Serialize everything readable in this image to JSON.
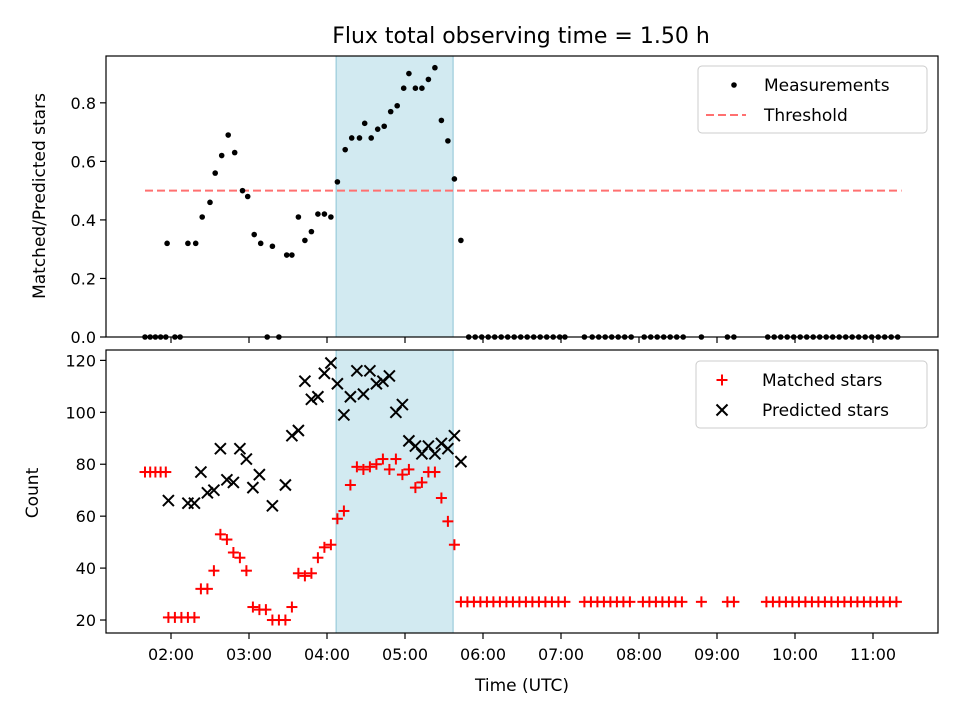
{
  "title": "Flux total observing time = 1.50 h",
  "colors": {
    "measurements": "#000000",
    "threshold": "#ff7070",
    "matched": "#ff0000",
    "predicted": "#000000",
    "highlight": "#add8e6"
  },
  "chart_data": [
    {
      "type": "scatter",
      "ylabel": "Matched/Predicted stars",
      "ylim": [
        0,
        0.96
      ],
      "yticks": [
        "0.0",
        "0.2",
        "0.4",
        "0.6",
        "0.8"
      ],
      "xlim": [
        "01:10",
        "11:50"
      ],
      "highlight_span": [
        "04:07",
        "05:37"
      ],
      "legend": {
        "position": "upper right",
        "entries": [
          "Measurements",
          "Threshold"
        ]
      },
      "threshold": {
        "value": 0.5,
        "x_range": [
          "01:40",
          "11:22"
        ],
        "style": "dashed"
      },
      "series": [
        {
          "name": "Measurements",
          "marker": "dot",
          "points": [
            [
              "01:40",
              0
            ],
            [
              "01:44",
              0
            ],
            [
              "01:48",
              0
            ],
            [
              "01:52",
              0
            ],
            [
              "01:56",
              0
            ],
            [
              "01:57",
              0.32
            ],
            [
              "02:03",
              0
            ],
            [
              "02:07",
              0
            ],
            [
              "02:13",
              0.32
            ],
            [
              "02:19",
              0.32
            ],
            [
              "02:24",
              0.41
            ],
            [
              "02:30",
              0.46
            ],
            [
              "02:34",
              0.56
            ],
            [
              "02:39",
              0.62
            ],
            [
              "02:44",
              0.69
            ],
            [
              "02:49",
              0.63
            ],
            [
              "02:55",
              0.5
            ],
            [
              "02:59",
              0.48
            ],
            [
              "03:04",
              0.35
            ],
            [
              "03:09",
              0.32
            ],
            [
              "03:14",
              0
            ],
            [
              "03:18",
              0.31
            ],
            [
              "03:23",
              0
            ],
            [
              "03:29",
              0.28
            ],
            [
              "03:33",
              0.28
            ],
            [
              "03:38",
              0.41
            ],
            [
              "03:43",
              0.33
            ],
            [
              "03:48",
              0.36
            ],
            [
              "03:53",
              0.42
            ],
            [
              "03:58",
              0.42
            ],
            [
              "04:03",
              0.41
            ],
            [
              "04:08",
              0.53
            ],
            [
              "04:14",
              0.64
            ],
            [
              "04:19",
              0.68
            ],
            [
              "04:25",
              0.68
            ],
            [
              "04:29",
              0.73
            ],
            [
              "04:34",
              0.68
            ],
            [
              "04:39",
              0.71
            ],
            [
              "04:44",
              0.72
            ],
            [
              "04:49",
              0.77
            ],
            [
              "04:54",
              0.79
            ],
            [
              "04:59",
              0.85
            ],
            [
              "05:03",
              0.9
            ],
            [
              "05:08",
              0.85
            ],
            [
              "05:13",
              0.85
            ],
            [
              "05:18",
              0.88
            ],
            [
              "05:23",
              0.92
            ],
            [
              "05:28",
              0.74
            ],
            [
              "05:33",
              0.67
            ],
            [
              "05:38",
              0.54
            ],
            [
              "05:43",
              0.33
            ],
            [
              "05:49",
              0
            ],
            [
              "05:54",
              0
            ],
            [
              "05:59",
              0
            ],
            [
              "06:04",
              0
            ],
            [
              "06:09",
              0
            ],
            [
              "06:14",
              0
            ],
            [
              "06:19",
              0
            ],
            [
              "06:24",
              0
            ],
            [
              "06:29",
              0
            ],
            [
              "06:34",
              0
            ],
            [
              "06:39",
              0
            ],
            [
              "06:44",
              0
            ],
            [
              "06:49",
              0
            ],
            [
              "06:54",
              0
            ],
            [
              "06:59",
              0
            ],
            [
              "07:03",
              0
            ],
            [
              "07:18",
              0
            ],
            [
              "07:24",
              0
            ],
            [
              "07:29",
              0
            ],
            [
              "07:34",
              0
            ],
            [
              "07:39",
              0
            ],
            [
              "07:44",
              0
            ],
            [
              "07:49",
              0
            ],
            [
              "07:54",
              0
            ],
            [
              "08:04",
              0
            ],
            [
              "08:09",
              0
            ],
            [
              "08:14",
              0
            ],
            [
              "08:19",
              0
            ],
            [
              "08:24",
              0
            ],
            [
              "08:29",
              0
            ],
            [
              "08:34",
              0
            ],
            [
              "08:48",
              0
            ],
            [
              "09:08",
              0
            ],
            [
              "09:13",
              0
            ],
            [
              "09:39",
              0
            ],
            [
              "09:44",
              0
            ],
            [
              "09:49",
              0
            ],
            [
              "09:54",
              0
            ],
            [
              "09:59",
              0
            ],
            [
              "10:04",
              0
            ],
            [
              "10:09",
              0
            ],
            [
              "10:14",
              0
            ],
            [
              "10:19",
              0
            ],
            [
              "10:24",
              0
            ],
            [
              "10:29",
              0
            ],
            [
              "10:34",
              0
            ],
            [
              "10:39",
              0
            ],
            [
              "10:44",
              0
            ],
            [
              "10:49",
              0
            ],
            [
              "10:54",
              0
            ],
            [
              "10:59",
              0
            ],
            [
              "11:04",
              0
            ],
            [
              "11:09",
              0
            ],
            [
              "11:14",
              0
            ],
            [
              "11:19",
              0
            ]
          ]
        }
      ]
    },
    {
      "type": "scatter",
      "ylabel": "Count",
      "xlabel": "Time (UTC)",
      "ylim": [
        15,
        124
      ],
      "yticks": [
        "20",
        "40",
        "60",
        "80",
        "100",
        "120"
      ],
      "xlim": [
        "01:10",
        "11:50"
      ],
      "xticks": [
        "02:00",
        "03:00",
        "04:00",
        "05:00",
        "06:00",
        "07:00",
        "08:00",
        "09:00",
        "10:00",
        "11:00"
      ],
      "highlight_span": [
        "04:07",
        "05:37"
      ],
      "legend": {
        "position": "upper right",
        "entries": [
          "Matched stars",
          "Predicted stars"
        ]
      },
      "series": [
        {
          "name": "Matched stars",
          "marker": "plus",
          "points": [
            [
              "01:40",
              77
            ],
            [
              "01:44",
              77
            ],
            [
              "01:48",
              77
            ],
            [
              "01:52",
              77
            ],
            [
              "01:56",
              77
            ],
            [
              "01:58",
              21
            ],
            [
              "02:03",
              21
            ],
            [
              "02:08",
              21
            ],
            [
              "02:13",
              21
            ],
            [
              "02:18",
              21
            ],
            [
              "02:23",
              32
            ],
            [
              "02:28",
              32
            ],
            [
              "02:33",
              39
            ],
            [
              "02:38",
              53
            ],
            [
              "02:43",
              51
            ],
            [
              "02:48",
              46
            ],
            [
              "02:53",
              44
            ],
            [
              "02:58",
              39
            ],
            [
              "03:03",
              25
            ],
            [
              "03:08",
              24
            ],
            [
              "03:13",
              24
            ],
            [
              "03:18",
              20
            ],
            [
              "03:23",
              20
            ],
            [
              "03:28",
              20
            ],
            [
              "03:33",
              25
            ],
            [
              "03:38",
              38
            ],
            [
              "03:43",
              37
            ],
            [
              "03:48",
              38
            ],
            [
              "03:53",
              44
            ],
            [
              "03:58",
              48
            ],
            [
              "04:03",
              49
            ],
            [
              "04:08",
              59
            ],
            [
              "04:13",
              62
            ],
            [
              "04:18",
              72
            ],
            [
              "04:23",
              79
            ],
            [
              "04:28",
              78
            ],
            [
              "04:33",
              79
            ],
            [
              "04:38",
              80
            ],
            [
              "04:43",
              82
            ],
            [
              "04:48",
              78
            ],
            [
              "04:53",
              82
            ],
            [
              "04:58",
              76
            ],
            [
              "05:03",
              78
            ],
            [
              "05:08",
              71
            ],
            [
              "05:13",
              73
            ],
            [
              "05:18",
              77
            ],
            [
              "05:23",
              77
            ],
            [
              "05:28",
              67
            ],
            [
              "05:33",
              58
            ],
            [
              "05:38",
              49
            ],
            [
              "05:43",
              27
            ],
            [
              "05:48",
              27
            ],
            [
              "05:53",
              27
            ],
            [
              "05:58",
              27
            ],
            [
              "06:03",
              27
            ],
            [
              "06:08",
              27
            ],
            [
              "06:13",
              27
            ],
            [
              "06:18",
              27
            ],
            [
              "06:23",
              27
            ],
            [
              "06:28",
              27
            ],
            [
              "06:33",
              27
            ],
            [
              "06:38",
              27
            ],
            [
              "06:43",
              27
            ],
            [
              "06:48",
              27
            ],
            [
              "06:53",
              27
            ],
            [
              "06:58",
              27
            ],
            [
              "07:03",
              27
            ],
            [
              "07:18",
              27
            ],
            [
              "07:23",
              27
            ],
            [
              "07:28",
              27
            ],
            [
              "07:33",
              27
            ],
            [
              "07:38",
              27
            ],
            [
              "07:43",
              27
            ],
            [
              "07:48",
              27
            ],
            [
              "07:53",
              27
            ],
            [
              "08:03",
              27
            ],
            [
              "08:08",
              27
            ],
            [
              "08:13",
              27
            ],
            [
              "08:18",
              27
            ],
            [
              "08:23",
              27
            ],
            [
              "08:28",
              27
            ],
            [
              "08:33",
              27
            ],
            [
              "08:48",
              27
            ],
            [
              "09:08",
              27
            ],
            [
              "09:13",
              27
            ],
            [
              "09:38",
              27
            ],
            [
              "09:43",
              27
            ],
            [
              "09:48",
              27
            ],
            [
              "09:53",
              27
            ],
            [
              "09:58",
              27
            ],
            [
              "10:03",
              27
            ],
            [
              "10:08",
              27
            ],
            [
              "10:13",
              27
            ],
            [
              "10:18",
              27
            ],
            [
              "10:23",
              27
            ],
            [
              "10:28",
              27
            ],
            [
              "10:33",
              27
            ],
            [
              "10:38",
              27
            ],
            [
              "10:43",
              27
            ],
            [
              "10:48",
              27
            ],
            [
              "10:53",
              27
            ],
            [
              "10:58",
              27
            ],
            [
              "11:03",
              27
            ],
            [
              "11:08",
              27
            ],
            [
              "11:13",
              27
            ],
            [
              "11:18",
              27
            ]
          ]
        },
        {
          "name": "Predicted stars",
          "marker": "x",
          "points": [
            [
              "01:58",
              66
            ],
            [
              "02:13",
              65
            ],
            [
              "02:18",
              65
            ],
            [
              "02:23",
              77
            ],
            [
              "02:28",
              69
            ],
            [
              "02:33",
              70
            ],
            [
              "02:38",
              86
            ],
            [
              "02:43",
              74
            ],
            [
              "02:48",
              73
            ],
            [
              "02:53",
              86
            ],
            [
              "02:58",
              82
            ],
            [
              "03:03",
              71
            ],
            [
              "03:08",
              76
            ],
            [
              "03:18",
              64
            ],
            [
              "03:28",
              72
            ],
            [
              "03:33",
              91
            ],
            [
              "03:38",
              93
            ],
            [
              "03:43",
              112
            ],
            [
              "03:48",
              105
            ],
            [
              "03:53",
              106
            ],
            [
              "03:58",
              115
            ],
            [
              "04:03",
              119
            ],
            [
              "04:08",
              111
            ],
            [
              "04:13",
              99
            ],
            [
              "04:18",
              106
            ],
            [
              "04:23",
              116
            ],
            [
              "04:28",
              107
            ],
            [
              "04:33",
              116
            ],
            [
              "04:38",
              111
            ],
            [
              "04:43",
              112
            ],
            [
              "04:48",
              114
            ],
            [
              "04:53",
              100
            ],
            [
              "04:58",
              103
            ],
            [
              "05:03",
              89
            ],
            [
              "05:08",
              87
            ],
            [
              "05:13",
              84
            ],
            [
              "05:18",
              87
            ],
            [
              "05:23",
              84
            ],
            [
              "05:28",
              88
            ],
            [
              "05:33",
              86
            ],
            [
              "05:38",
              91
            ],
            [
              "05:43",
              81
            ]
          ]
        }
      ]
    }
  ]
}
